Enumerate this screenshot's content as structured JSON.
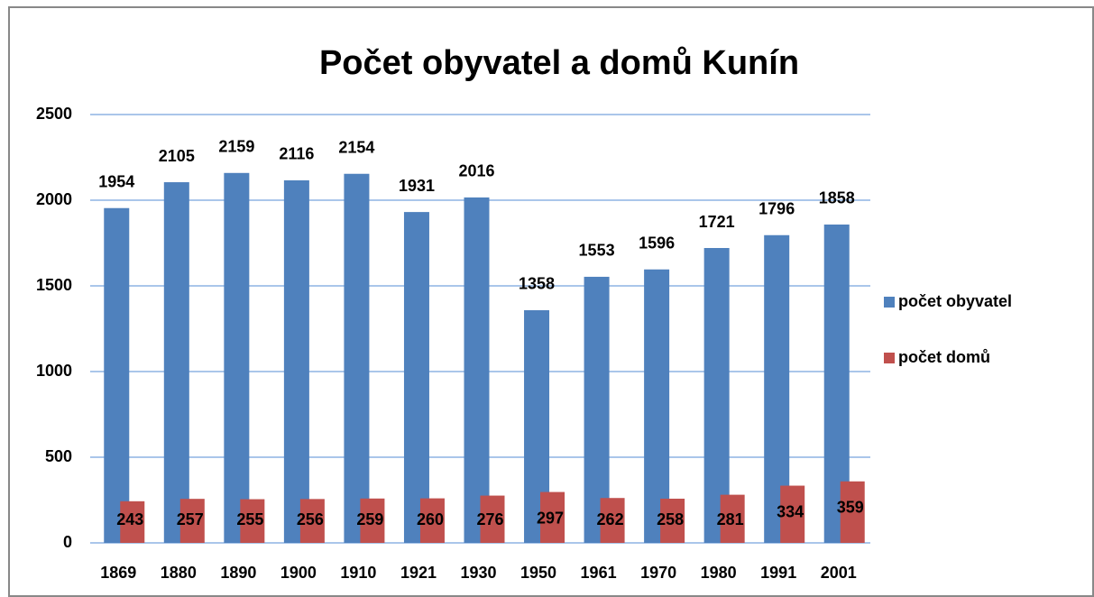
{
  "chart_data": {
    "type": "bar",
    "title": "Počet obyvatel a domů Kunín",
    "categories": [
      "1869",
      "1880",
      "1890",
      "1900",
      "1910",
      "1921",
      "1930",
      "1950",
      "1961",
      "1970",
      "1980",
      "1991",
      "2001"
    ],
    "series": [
      {
        "name": "počet obyvatel",
        "color": "#4f81bd",
        "values": [
          1954,
          2105,
          2159,
          2116,
          2154,
          1931,
          2016,
          1358,
          1553,
          1596,
          1721,
          1796,
          1858
        ]
      },
      {
        "name": "počet domů",
        "color": "#c0504d",
        "values": [
          243,
          257,
          255,
          256,
          259,
          260,
          276,
          297,
          262,
          258,
          281,
          334,
          359
        ]
      }
    ],
    "ylim": [
      0,
      2500
    ],
    "yticks": [
      0,
      500,
      1000,
      1500,
      2000,
      2500
    ],
    "grid": true,
    "legend": "right"
  }
}
